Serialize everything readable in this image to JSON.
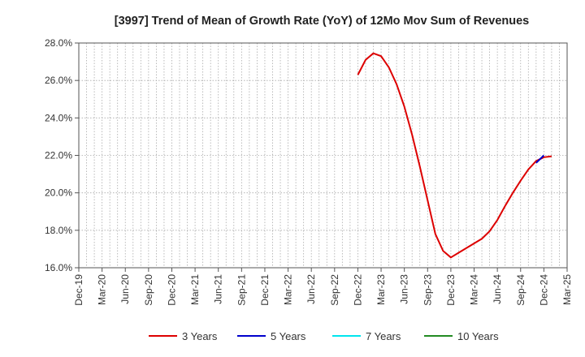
{
  "chart_data": {
    "type": "line",
    "title": "[3997]  Trend of Mean of Growth Rate (YoY) of 12Mo Mov Sum of Revenues",
    "xlabel": "",
    "ylabel": "",
    "ylim": [
      16.0,
      28.0
    ],
    "y_ticks": [
      16.0,
      18.0,
      20.0,
      22.0,
      24.0,
      26.0,
      28.0
    ],
    "y_tick_labels": [
      "16.0%",
      "18.0%",
      "20.0%",
      "22.0%",
      "24.0%",
      "26.0%",
      "28.0%"
    ],
    "x_start": "Dec-19",
    "x_month_count": 63,
    "x_tick_labels": [
      "Dec-19",
      "Mar-20",
      "Jun-20",
      "Sep-20",
      "Dec-20",
      "Mar-21",
      "Jun-21",
      "Sep-21",
      "Dec-21",
      "Mar-22",
      "Jun-22",
      "Sep-22",
      "Dec-22",
      "Mar-23",
      "Jun-23",
      "Sep-23",
      "Dec-23",
      "Mar-24",
      "Jun-24",
      "Sep-24",
      "Dec-24",
      "Mar-25"
    ],
    "grid": true,
    "legend_position": "bottom",
    "series": [
      {
        "name": "3 Years",
        "color": "#dd0000",
        "start_month_index": 36,
        "values": [
          26.3,
          27.1,
          27.45,
          27.3,
          26.7,
          25.8,
          24.6,
          23.1,
          21.4,
          19.6,
          17.8,
          16.9,
          16.55,
          16.8,
          17.05,
          17.3,
          17.55,
          17.95,
          18.55,
          19.3,
          20.0,
          20.65,
          21.25,
          21.7,
          21.9,
          21.95
        ]
      },
      {
        "name": "5 Years",
        "color": "#0000cc",
        "start_month_index": 59,
        "values": [
          21.6,
          22.0
        ]
      },
      {
        "name": "7 Years",
        "color": "#00e5ee",
        "start_month_index": 0,
        "values": []
      },
      {
        "name": "10 Years",
        "color": "#228b22",
        "start_month_index": 0,
        "values": []
      }
    ]
  }
}
